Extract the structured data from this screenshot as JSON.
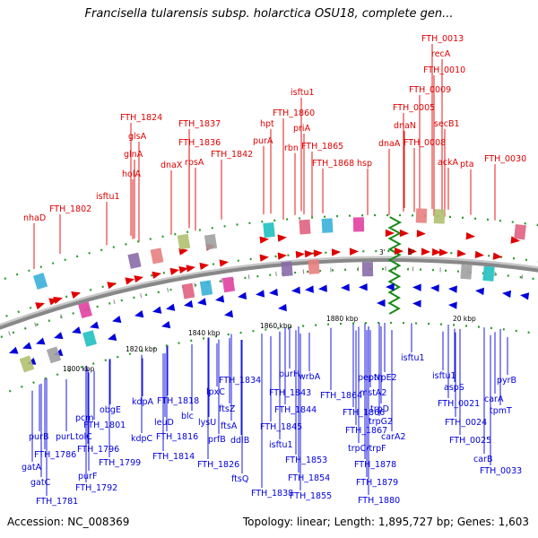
{
  "title": "Francisella tularensis subsp. holarctica OSU18, complete gen...",
  "accession": "Accession: NC_008369",
  "summary": "Topology: linear; Length: 1,895,727 bp; Genes: 1,603",
  "colors": {
    "forward": "#e00000",
    "reverse": "#0000dd",
    "backbone": "#888888",
    "origin": "#1a8a1a"
  },
  "ticks": [
    "1800 kbp",
    "1820 kbp",
    "1840 kbp",
    "1860 kbp",
    "1880 kbp",
    "20 kbp"
  ],
  "origin_labels": [
    "3'",
    "5'"
  ],
  "red_labels": [
    "FTH_0013",
    "recA",
    "FTH_0010",
    "FTH_0009",
    "FTH_0005",
    "secB1",
    "dnaN",
    "FTH_0008",
    "dnaA",
    "ackA",
    "pta",
    "FTH_0030",
    "isftu1",
    "priA",
    "FTH_1860",
    "hpt",
    "rbn",
    "FTH_1865",
    "purA",
    "FTH_1868",
    "hsp",
    "FTH_1824",
    "FTH_1837",
    "glsA",
    "FTH_1836",
    "glnA",
    "rpsA",
    "FTH_1842",
    "holA",
    "dnaX",
    "FTH_1802",
    "isftu1",
    "nhaD"
  ],
  "blue_labels": [
    "ftsQ",
    "FTH_1838",
    "FTH_1826",
    "lpxC",
    "ftsZ",
    "ftsA",
    "ddlB",
    "prfB",
    "lysU",
    "FTH_1834",
    "FTH_1843",
    "FTH_1844",
    "FTH_1845",
    "isftu1",
    "purH",
    "wrbA",
    "FTH_1853",
    "FTH_1854",
    "FTH_1855",
    "FTH_1864",
    "FTH_1866",
    "FTH_1867",
    "pepN",
    "trpE2",
    "mstA2",
    "trpD",
    "trpG2",
    "carA2",
    "trpC/trpF",
    "FTH_1878",
    "FTH_1879",
    "FTH_1880",
    "isftu1",
    "isftu1",
    "aspS",
    "FTH_0021",
    "pyrB",
    "carA",
    "tpmT",
    "FTH_0024",
    "FTH_0025",
    "carB",
    "FTH_0033",
    "purB",
    "FTH_1786",
    "gatA",
    "gatC",
    "FTH_1781",
    "purL",
    "pcm",
    "tolC",
    "purF",
    "FTH_1792",
    "obgE",
    "FTH_1801",
    "FTH_1796",
    "FTH_1799",
    "kdpA",
    "kdpC",
    "FTH_1818",
    "leuD",
    "blc",
    "FTH_1816",
    "FTH_1814"
  ]
}
